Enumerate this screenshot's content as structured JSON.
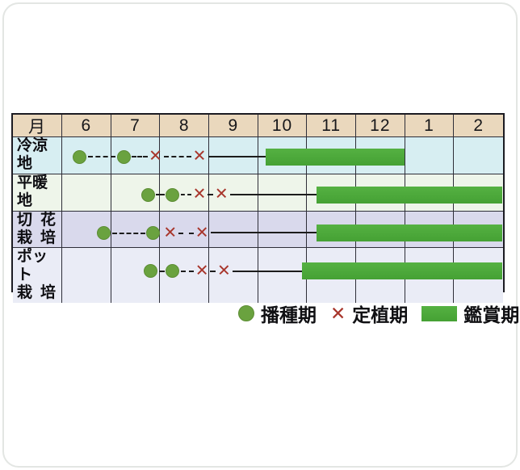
{
  "table": {
    "month_header_label": "月",
    "months": [
      "6",
      "7",
      "8",
      "9",
      "10",
      "11",
      "12",
      "1",
      "2"
    ]
  },
  "legend": {
    "items": [
      {
        "icon": "sow-dot-icon",
        "label": "播種期"
      },
      {
        "icon": "plant-x-icon",
        "label": "定植期"
      },
      {
        "icon": "view-bar-icon",
        "label": "鑑賞期"
      }
    ]
  },
  "icons": {
    "plant_x": "✕"
  },
  "colors": {
    "header_bg": "#ead8bd",
    "row_bgs": [
      "#d7eef2",
      "#eef5ea",
      "#d9d9ec",
      "#eaecf6"
    ],
    "grid_line": "#2e2e38",
    "bar_green": "#4aa737",
    "dot_green": "#6aa23f",
    "x_red": "#a8362c"
  },
  "chart_data": {
    "type": "gantt",
    "title": "",
    "x_axis": {
      "label": "月",
      "categories": [
        "6",
        "7",
        "8",
        "9",
        "10",
        "11",
        "12",
        "1",
        "2"
      ],
      "note": "6月から翌年2月までの月軸。month値 13=翌1月, 14=翌2月, 15=2月末"
    },
    "legend_labels": {
      "sow": "播種期",
      "plant": "定植期",
      "view": "鑑賞期"
    },
    "rows": [
      {
        "label": "冷涼地",
        "label_lines": [
          "冷涼地"
        ],
        "sow_marks": [
          6.35,
          7.25
        ],
        "plant_marks": [
          7.9,
          8.8
        ],
        "view_bar": [
          10.15,
          13.0
        ]
      },
      {
        "label": "平暖地",
        "label_lines": [
          "平暖地"
        ],
        "sow_marks": [
          7.75,
          8.25
        ],
        "plant_marks": [
          8.8,
          9.25
        ],
        "view_bar": [
          11.2,
          15.0
        ]
      },
      {
        "label": "切花栽培",
        "label_lines": [
          "切花",
          "栽培"
        ],
        "sow_marks": [
          6.85,
          7.85
        ],
        "plant_marks": [
          8.2,
          8.85
        ],
        "view_bar": [
          11.2,
          15.0
        ]
      },
      {
        "label": "ポット栽培",
        "label_lines": [
          "ポット",
          "栽培"
        ],
        "sow_marks": [
          7.8,
          8.25
        ],
        "plant_marks": [
          8.85,
          9.3
        ],
        "view_bar": [
          10.9,
          15.0
        ]
      }
    ]
  }
}
